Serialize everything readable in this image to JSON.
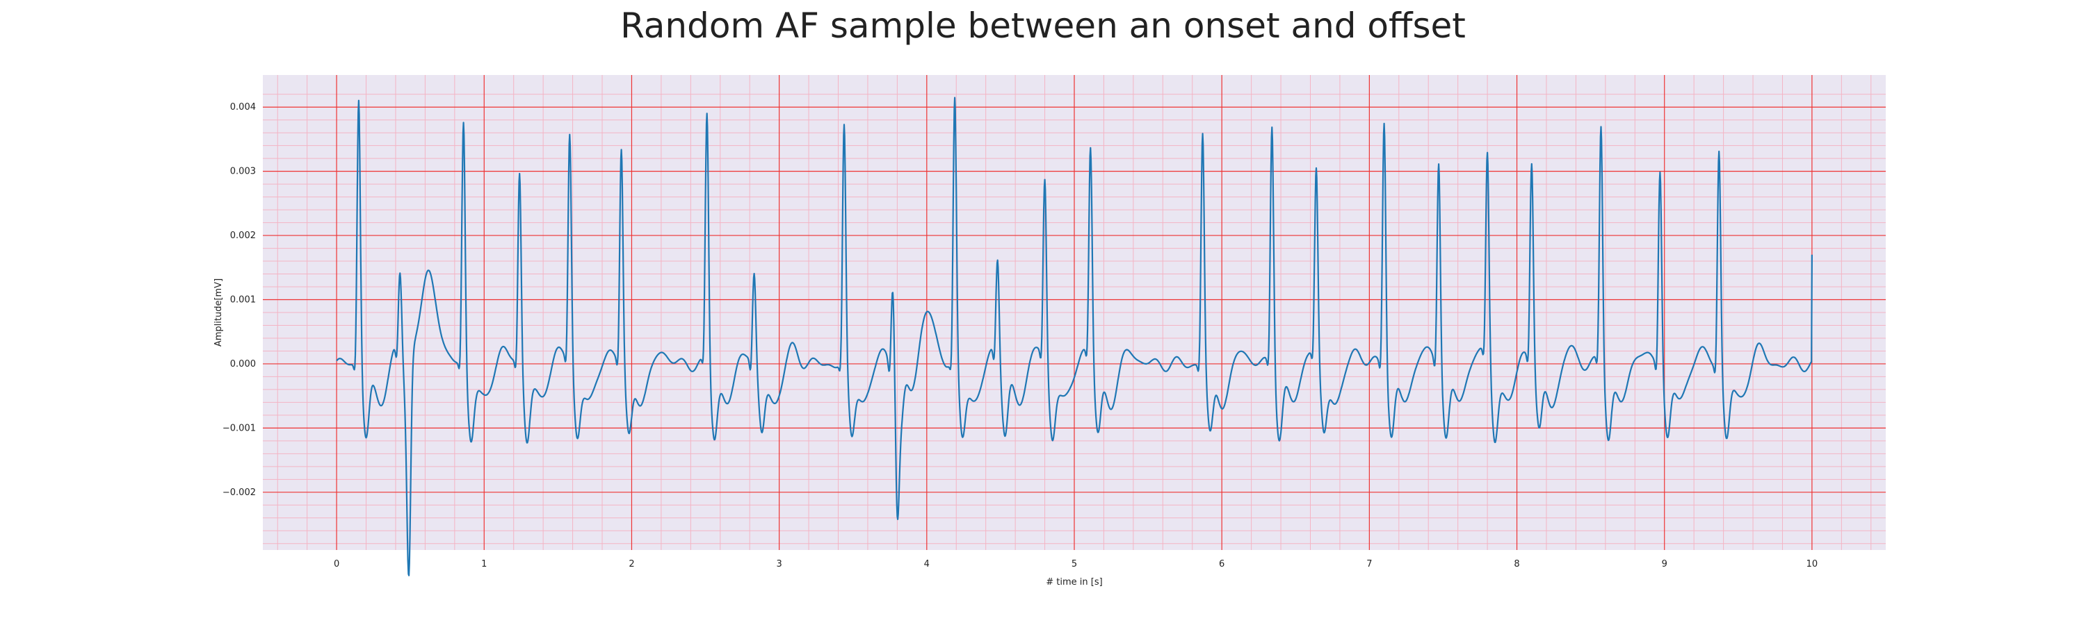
{
  "chart_data": {
    "type": "line",
    "title": "Random AF sample between an onset and offset",
    "xlabel": "# time in [s]",
    "ylabel": "Amplitude[mV]",
    "xlim": [
      -0.5,
      10.5
    ],
    "ylim": [
      -0.0029,
      0.0045
    ],
    "x_ticks": [
      0,
      1,
      2,
      3,
      4,
      5,
      6,
      7,
      8,
      9,
      10
    ],
    "x_tick_labels": [
      "0",
      "1",
      "2",
      "3",
      "4",
      "5",
      "6",
      "7",
      "8",
      "9",
      "10"
    ],
    "y_ticks": [
      -0.002,
      -0.001,
      0.0,
      0.001,
      0.002,
      0.003,
      0.004
    ],
    "y_tick_labels": [
      "−0.002",
      "−0.001",
      "0.000",
      "0.001",
      "0.002",
      "0.003",
      "0.004"
    ],
    "grid": true,
    "minor_grid": true,
    "major_grid_color": "#ee3333",
    "minor_grid_color": "#f4b4c4",
    "background_color": "#eae6f2",
    "series": [
      {
        "color": "#1f77b4",
        "r_peaks": [
          {
            "t": 0.15,
            "amp": 0.0042
          },
          {
            "t": 0.43,
            "amp": 0.0012
          },
          {
            "t": 0.86,
            "amp": 0.0038
          },
          {
            "t": 1.24,
            "amp": 0.003
          },
          {
            "t": 1.58,
            "amp": 0.00355
          },
          {
            "t": 1.93,
            "amp": 0.00335
          },
          {
            "t": 2.51,
            "amp": 0.0039
          },
          {
            "t": 2.83,
            "amp": 0.00135
          },
          {
            "t": 3.44,
            "amp": 0.0037
          },
          {
            "t": 3.77,
            "amp": 0.00125
          },
          {
            "t": 4.19,
            "amp": 0.0041
          },
          {
            "t": 4.48,
            "amp": 0.00155
          },
          {
            "t": 4.8,
            "amp": 0.0028
          },
          {
            "t": 5.11,
            "amp": 0.0033
          },
          {
            "t": 5.87,
            "amp": 0.00365
          },
          {
            "t": 6.34,
            "amp": 0.0038
          },
          {
            "t": 6.64,
            "amp": 0.0029
          },
          {
            "t": 7.1,
            "amp": 0.0039
          },
          {
            "t": 7.47,
            "amp": 0.00325
          },
          {
            "t": 7.8,
            "amp": 0.0032
          },
          {
            "t": 8.1,
            "amp": 0.0031
          },
          {
            "t": 8.57,
            "amp": 0.00375
          },
          {
            "t": 8.97,
            "amp": 0.0031
          },
          {
            "t": 9.37,
            "amp": 0.0034
          }
        ],
        "deep_troughs": [
          {
            "t": 0.49,
            "amp": -0.0026
          },
          {
            "t": 3.8,
            "amp": -0.0018
          }
        ],
        "wide_humps": [
          {
            "t": 0.6,
            "amp": 0.0017
          },
          {
            "t": 3.98,
            "amp": 0.0007
          }
        ],
        "end_value": {
          "t": 10.0,
          "amp": 0.0017
        }
      }
    ]
  }
}
